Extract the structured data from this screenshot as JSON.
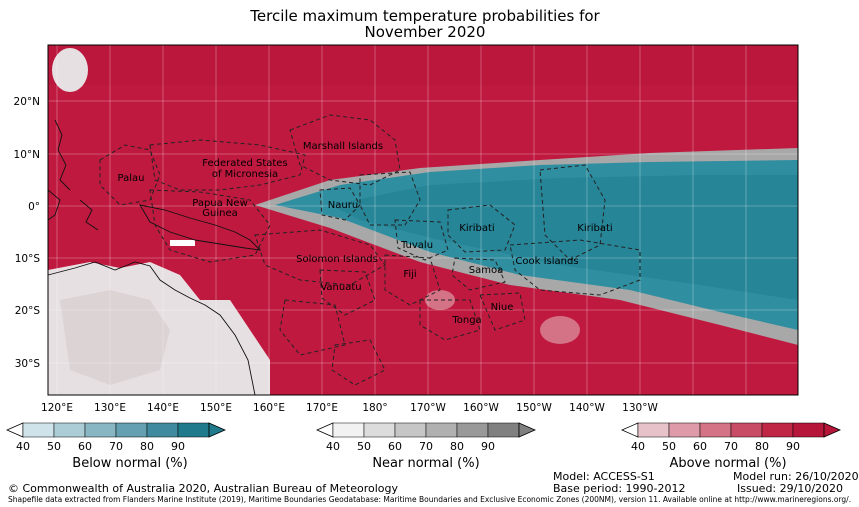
{
  "title_line1": "Tercile maximum temperature probabilities for",
  "title_line2": "November 2020",
  "lat_labels": [
    "20°N",
    "10°N",
    "0°",
    "10°S",
    "20°S",
    "30°S"
  ],
  "lon_labels": [
    "120°E",
    "130°E",
    "140°E",
    "150°E",
    "160°E",
    "170°E",
    "180°",
    "170°W",
    "160°W",
    "150°W",
    "140°W",
    "130°W"
  ],
  "places": [
    "Marshall Islands",
    "Palau",
    "Federated States",
    "of Micronesia",
    "Papua New",
    "Guinea",
    "Nauru",
    "Kiribati",
    "Kiribati",
    "Tuvalu",
    "Solomon Islands",
    "Cook Islands",
    "Samoa",
    "Fiji",
    "Vanuatu",
    "Niue",
    "Tonga"
  ],
  "colorbars": [
    {
      "label": "Below normal (%)",
      "ticks": [
        "40",
        "50",
        "60",
        "70",
        "80",
        "90"
      ],
      "colors": [
        "#cfe3ea",
        "#acccd6",
        "#88b6c3",
        "#64a0b1",
        "#3f8a9e",
        "#1f7a8c"
      ]
    },
    {
      "label": "Near normal (%)",
      "ticks": [
        "40",
        "50",
        "60",
        "70",
        "80",
        "90"
      ],
      "colors": [
        "#f2f2f2",
        "#dcdcdc",
        "#c6c6c6",
        "#b0b0b0",
        "#999999",
        "#808080"
      ]
    },
    {
      "label": "Above normal (%)",
      "ticks": [
        "40",
        "50",
        "60",
        "70",
        "80",
        "90"
      ],
      "colors": [
        "#e8c2c9",
        "#de9aa8",
        "#d47386",
        "#c94c66",
        "#c02646",
        "#b5163a"
      ]
    }
  ],
  "copyright": "© Commonwealth of Australia 2020, Australian Bureau of Meteorology",
  "model": "Model: ACCESS-S1",
  "base_period": "Base period: 1990-2012",
  "model_run": "Model run: 26/10/2020",
  "issued": "Issued: 29/10/2020",
  "shapefile": "Shapefile data extracted from Flanders Marine Institute (2019), Maritime Boundaries Geodatabase: Maritime Boundaries and Exclusive Economic Zones (200NM), version 11. Available online at http://www.marineregions.org/.",
  "colors": {
    "above": "#c0193f",
    "near": "#a8a8a8",
    "below": "#2f8ea0",
    "land_light": "#e7e0e2"
  }
}
